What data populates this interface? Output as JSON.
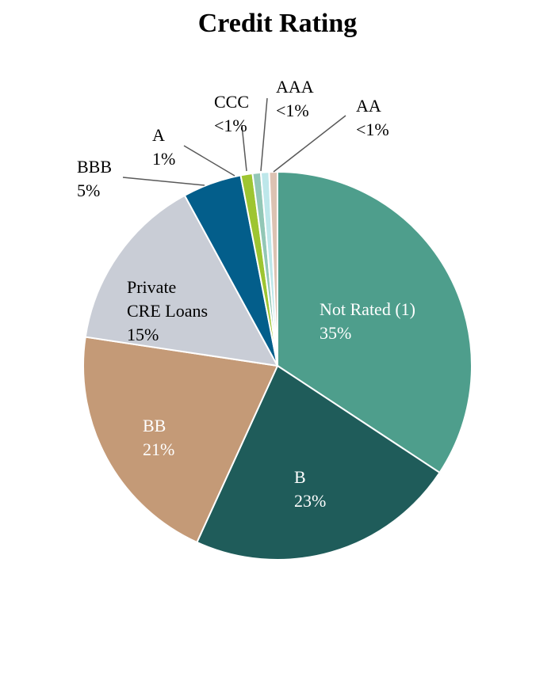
{
  "chart_data": {
    "type": "pie",
    "title": "Credit Rating",
    "slices": [
      {
        "name": "Not Rated (1)",
        "value": 35,
        "display": "35%",
        "color": "#4e9e8c"
      },
      {
        "name": "B",
        "value": 23,
        "display": "23%",
        "color": "#1f5c5a"
      },
      {
        "name": "BB",
        "value": 21,
        "display": "21%",
        "color": "#c49a77"
      },
      {
        "name": "Private CRE Loans",
        "value": 15,
        "display": "15%",
        "color": "#c9cdd6"
      },
      {
        "name": "BBB",
        "value": 5,
        "display": "5%",
        "color": "#035e8b"
      },
      {
        "name": "A",
        "value": 1,
        "display": "1%",
        "color": "#9ec531"
      },
      {
        "name": "CCC",
        "value": 0.7,
        "display": "<1%",
        "color": "#92c7b6"
      },
      {
        "name": "AAA",
        "value": 0.7,
        "display": "<1%",
        "color": "#bde7ea"
      },
      {
        "name": "AA",
        "value": 0.7,
        "display": "<1%",
        "color": "#dcc2b2"
      }
    ]
  }
}
